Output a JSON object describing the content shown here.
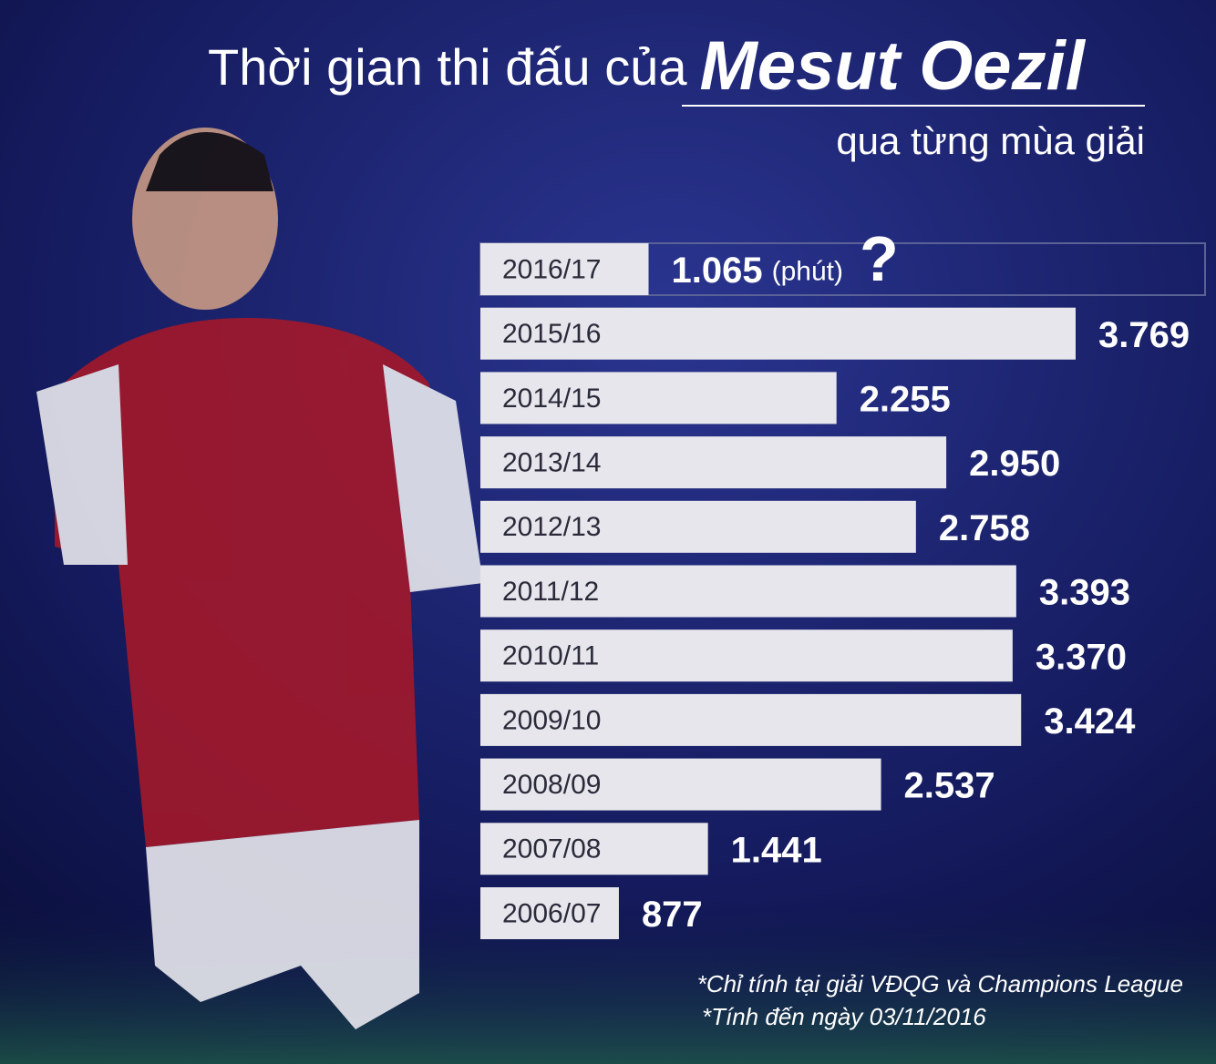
{
  "title_main": "Thời gian thi đấu của",
  "title_name": "Mesut Oezil",
  "subtitle": "qua từng mùa giải",
  "chart_data": {
    "type": "bar",
    "orientation": "horizontal",
    "categories": [
      "2016/17",
      "2015/16",
      "2014/15",
      "2013/14",
      "2012/13",
      "2011/12",
      "2010/11",
      "2009/10",
      "2008/09",
      "2007/08",
      "2006/07"
    ],
    "values": [
      1065,
      3769,
      2255,
      2950,
      2758,
      3393,
      3370,
      3424,
      2537,
      1441,
      877
    ],
    "value_labels": [
      "1.065",
      "3.769",
      "2.255",
      "2.950",
      "2.758",
      "3.393",
      "3.370",
      "3.424",
      "2.537",
      "1.441",
      "877"
    ],
    "unit_label": "(phút)",
    "annotation": "?",
    "color": "#e6e6ec"
  },
  "footnotes": [
    "*Chỉ tính tại giải VĐQG và Champions League",
    "*Tính đến ngày 03/11/2016"
  ]
}
